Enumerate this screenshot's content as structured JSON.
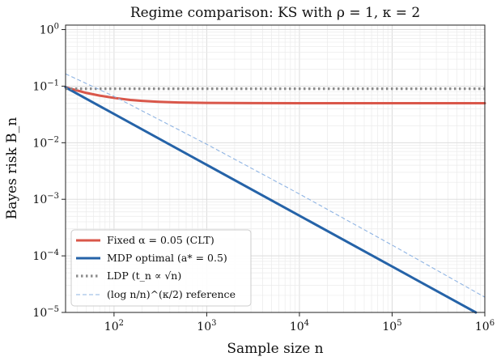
{
  "chart_data": {
    "type": "line",
    "title": "Regime comparison: KS with ρ = 1,  κ = 2",
    "xlabel": "Sample size n",
    "ylabel": "Bayes risk B_n",
    "xscale": "log",
    "yscale": "log",
    "xlim": [
      30,
      1000000
    ],
    "ylim": [
      1e-05,
      1.2
    ],
    "grid": true,
    "legend_position": "lower-left",
    "x_ticks": [
      {
        "value": 100,
        "label": "10^2"
      },
      {
        "value": 1000,
        "label": "10^3"
      },
      {
        "value": 10000,
        "label": "10^4"
      },
      {
        "value": 100000,
        "label": "10^5"
      },
      {
        "value": 1000000,
        "label": "10^6"
      }
    ],
    "y_ticks": [
      {
        "value": 1,
        "label": "10^0"
      },
      {
        "value": 0.1,
        "label": "10^-1"
      },
      {
        "value": 0.01,
        "label": "10^-2"
      },
      {
        "value": 0.001,
        "label": "10^-3"
      },
      {
        "value": 0.0001,
        "label": "10^-4"
      },
      {
        "value": 1e-05,
        "label": "10^-5"
      }
    ],
    "series": [
      {
        "name": "Fixed α = 0.05 (CLT)",
        "color": "#d9574a",
        "style": "solid",
        "x": [
          30,
          50,
          70,
          100,
          150,
          200,
          300,
          500,
          1000,
          3000,
          10000,
          100000,
          1000000
        ],
        "y": [
          0.095,
          0.076,
          0.068,
          0.062,
          0.057,
          0.055,
          0.053,
          0.0515,
          0.0505,
          0.0502,
          0.05,
          0.05,
          0.05
        ]
      },
      {
        "name": "MDP optimal (a* = 0.5)",
        "color": "#2563a8",
        "style": "solid",
        "x": [
          30,
          800000
        ],
        "y": [
          0.095,
          1e-05
        ]
      },
      {
        "name": "LDP (t_n ∝ √n)",
        "color": "#8c8c8c",
        "style": "dotted",
        "x": [
          30,
          1000000
        ],
        "y": [
          0.09,
          0.09
        ]
      },
      {
        "name": "(log n/n)^(κ/2) reference",
        "color": "#8fb4e3",
        "style": "dashed",
        "x": [
          30,
          100,
          1000,
          10000,
          100000,
          1000000
        ],
        "y": [
          0.165,
          0.066,
          0.0094,
          0.00124,
          0.000155,
          1.86e-05
        ]
      }
    ]
  }
}
